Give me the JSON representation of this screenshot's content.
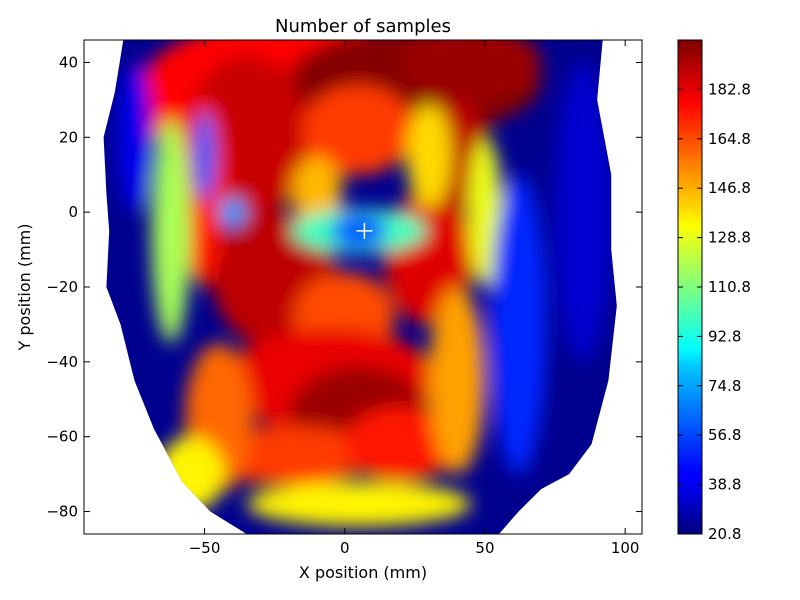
{
  "chart_data": {
    "type": "heatmap",
    "title": "Number of samples",
    "xlabel": "X position (mm)",
    "ylabel": "Y position (mm)",
    "xlim": [
      -93,
      106
    ],
    "ylim": [
      -86,
      46
    ],
    "xticks": [
      -50,
      0,
      50,
      100
    ],
    "yticks": [
      40,
      20,
      0,
      -20,
      -40,
      -60,
      -80
    ],
    "colormap": "jet",
    "color_range": [
      20.8,
      200.8
    ],
    "colorbar_ticks": [
      182.8,
      164.8,
      146.8,
      128.8,
      110.8,
      92.8,
      74.8,
      56.8,
      38.8,
      20.8
    ],
    "marker": {
      "symbol": "+",
      "x": 7,
      "y": -5,
      "color": "#ffffff"
    },
    "regions": [
      {
        "label": "top-center",
        "x": 20,
        "y": 38,
        "value": 200
      },
      {
        "label": "upper-left",
        "x": -35,
        "y": 25,
        "value": 190
      },
      {
        "label": "upper-center",
        "x": 5,
        "y": 32,
        "value": 175
      },
      {
        "label": "mid-left",
        "x": -25,
        "y": -18,
        "value": 188
      },
      {
        "label": "mid-right",
        "x": 30,
        "y": -10,
        "value": 180
      },
      {
        "label": "lower-center",
        "x": 5,
        "y": -52,
        "value": 190
      },
      {
        "label": "center-cavity",
        "x": 5,
        "y": -5,
        "value": 60
      },
      {
        "label": "left-band",
        "x": -62,
        "y": -10,
        "value": 110
      },
      {
        "label": "right-band",
        "x": 60,
        "y": -30,
        "value": 60
      }
    ]
  }
}
